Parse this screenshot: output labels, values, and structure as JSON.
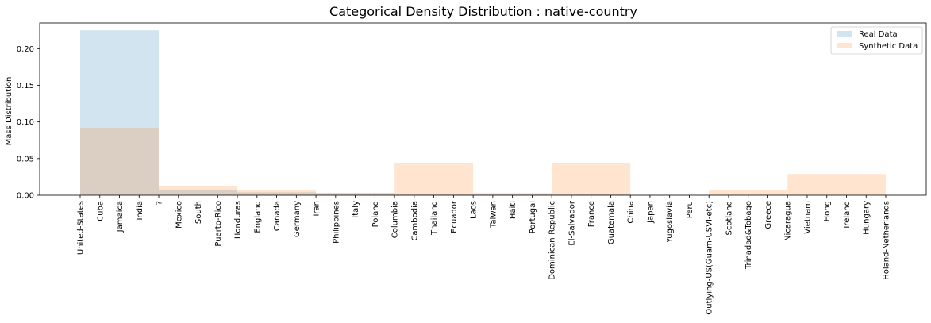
{
  "chart_data": {
    "type": "bar",
    "title": "Categorical Density Distribution : native-country",
    "xlabel": "",
    "ylabel": "Mass Distribution",
    "ylim": [
      0,
      0.235
    ],
    "yticks": [
      0.0,
      0.05,
      0.1,
      0.15,
      0.2
    ],
    "ytick_labels": [
      "0.00",
      "0.05",
      "0.10",
      "0.15",
      "0.20"
    ],
    "grid": false,
    "legend_position": "top-right",
    "categories": [
      "United-States",
      "Cuba",
      "Jamaica",
      "India",
      "?",
      "Mexico",
      "South",
      "Puerto-Rico",
      "Honduras",
      "England",
      "Canada",
      "Germany",
      "Iran",
      "Philippines",
      "Italy",
      "Poland",
      "Columbia",
      "Cambodia",
      "Thailand",
      "Ecuador",
      "Laos",
      "Taiwan",
      "Haiti",
      "Portugal",
      "Dominican-Republic",
      "El-Salvador",
      "France",
      "Guatemala",
      "China",
      "Japan",
      "Yugoslavia",
      "Peru",
      "Outlying-US(Guam-USVI-etc)",
      "Scotland",
      "Trinadad&Tobago",
      "Greece",
      "Nicaragua",
      "Vietnam",
      "Hong",
      "Ireland",
      "Hungary",
      "Holand-Netherlands"
    ],
    "series": [
      {
        "name": "Real Data",
        "color": "#1f77b4",
        "opacity": 0.2,
        "bins": [
          {
            "from": "United-States",
            "to": "?",
            "value": 0.225
          },
          {
            "from": "?",
            "to": "Honduras",
            "value": 0.007
          },
          {
            "from": "Honduras",
            "to": "Iran",
            "value": 0.004
          },
          {
            "from": "Iran",
            "to": "Columbia",
            "value": 0.003
          },
          {
            "from": "Columbia",
            "to": "Laos",
            "value": 0.001
          },
          {
            "from": "Laos",
            "to": "Dominican-Republic",
            "value": 0.001
          },
          {
            "from": "Dominican-Republic",
            "to": "China",
            "value": 0.001
          },
          {
            "from": "China",
            "to": "Outlying-US(Guam-USVI-etc)",
            "value": 0.0005
          },
          {
            "from": "Outlying-US(Guam-USVI-etc)",
            "to": "Nicaragua",
            "value": 0.0005
          },
          {
            "from": "Nicaragua",
            "to": "Holand-Netherlands",
            "value": 0.0005
          }
        ]
      },
      {
        "name": "Synthetic Data",
        "color": "#ff7f0e",
        "opacity": 0.2,
        "bins": [
          {
            "from": "United-States",
            "to": "?",
            "value": 0.092
          },
          {
            "from": "?",
            "to": "Honduras",
            "value": 0.013
          },
          {
            "from": "Honduras",
            "to": "Iran",
            "value": 0.007
          },
          {
            "from": "Iran",
            "to": "Columbia",
            "value": 0.003
          },
          {
            "from": "Columbia",
            "to": "Laos",
            "value": 0.044
          },
          {
            "from": "Laos",
            "to": "Dominican-Republic",
            "value": 0.003
          },
          {
            "from": "Dominican-Republic",
            "to": "China",
            "value": 0.044
          },
          {
            "from": "China",
            "to": "Outlying-US(Guam-USVI-etc)",
            "value": 0.0
          },
          {
            "from": "Outlying-US(Guam-USVI-etc)",
            "to": "Nicaragua",
            "value": 0.007
          },
          {
            "from": "Nicaragua",
            "to": "Holand-Netherlands",
            "value": 0.029
          }
        ]
      }
    ]
  }
}
